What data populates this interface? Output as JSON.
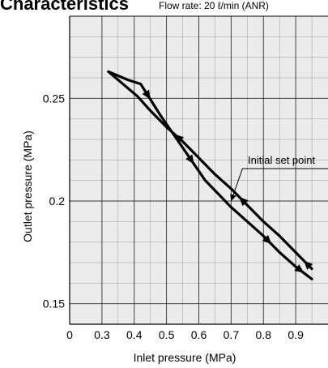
{
  "heading": {
    "title": "Characteristics",
    "condition": "Flow rate: 20 ℓ/min (ANR)"
  },
  "chart_data": {
    "type": "line",
    "xlabel": "Inlet pressure (MPa)",
    "ylabel": "Outlet pressure (MPa)",
    "x_ticks": [
      "0",
      "0.3",
      "0.4",
      "0.5",
      "0.6",
      "0.7",
      "0.8",
      "0.9"
    ],
    "y_ticks": [
      "0.15",
      "0.2",
      "0.25"
    ],
    "xlim": [
      0.2,
      1.0
    ],
    "ylim": [
      0.14,
      0.29
    ],
    "grid": true,
    "annotation": {
      "text": "Initial set point",
      "x": 0.7,
      "y": 0.2
    },
    "series": [
      {
        "x": [
          0.95,
          0.9,
          0.85,
          0.8,
          0.75,
          0.7,
          0.65,
          0.6,
          0.55,
          0.5,
          0.45,
          0.41,
          0.32,
          0.38,
          0.42,
          0.48,
          0.55,
          0.62,
          0.7,
          0.75,
          0.8,
          0.85,
          0.9,
          0.95
        ],
        "y": [
          0.167,
          0.175,
          0.183,
          0.19,
          0.198,
          0.206,
          0.213,
          0.221,
          0.229,
          0.236,
          0.244,
          0.251,
          0.263,
          0.259,
          0.257,
          0.242,
          0.226,
          0.21,
          0.197,
          0.19,
          0.183,
          0.175,
          0.168,
          0.162
        ]
      }
    ]
  }
}
